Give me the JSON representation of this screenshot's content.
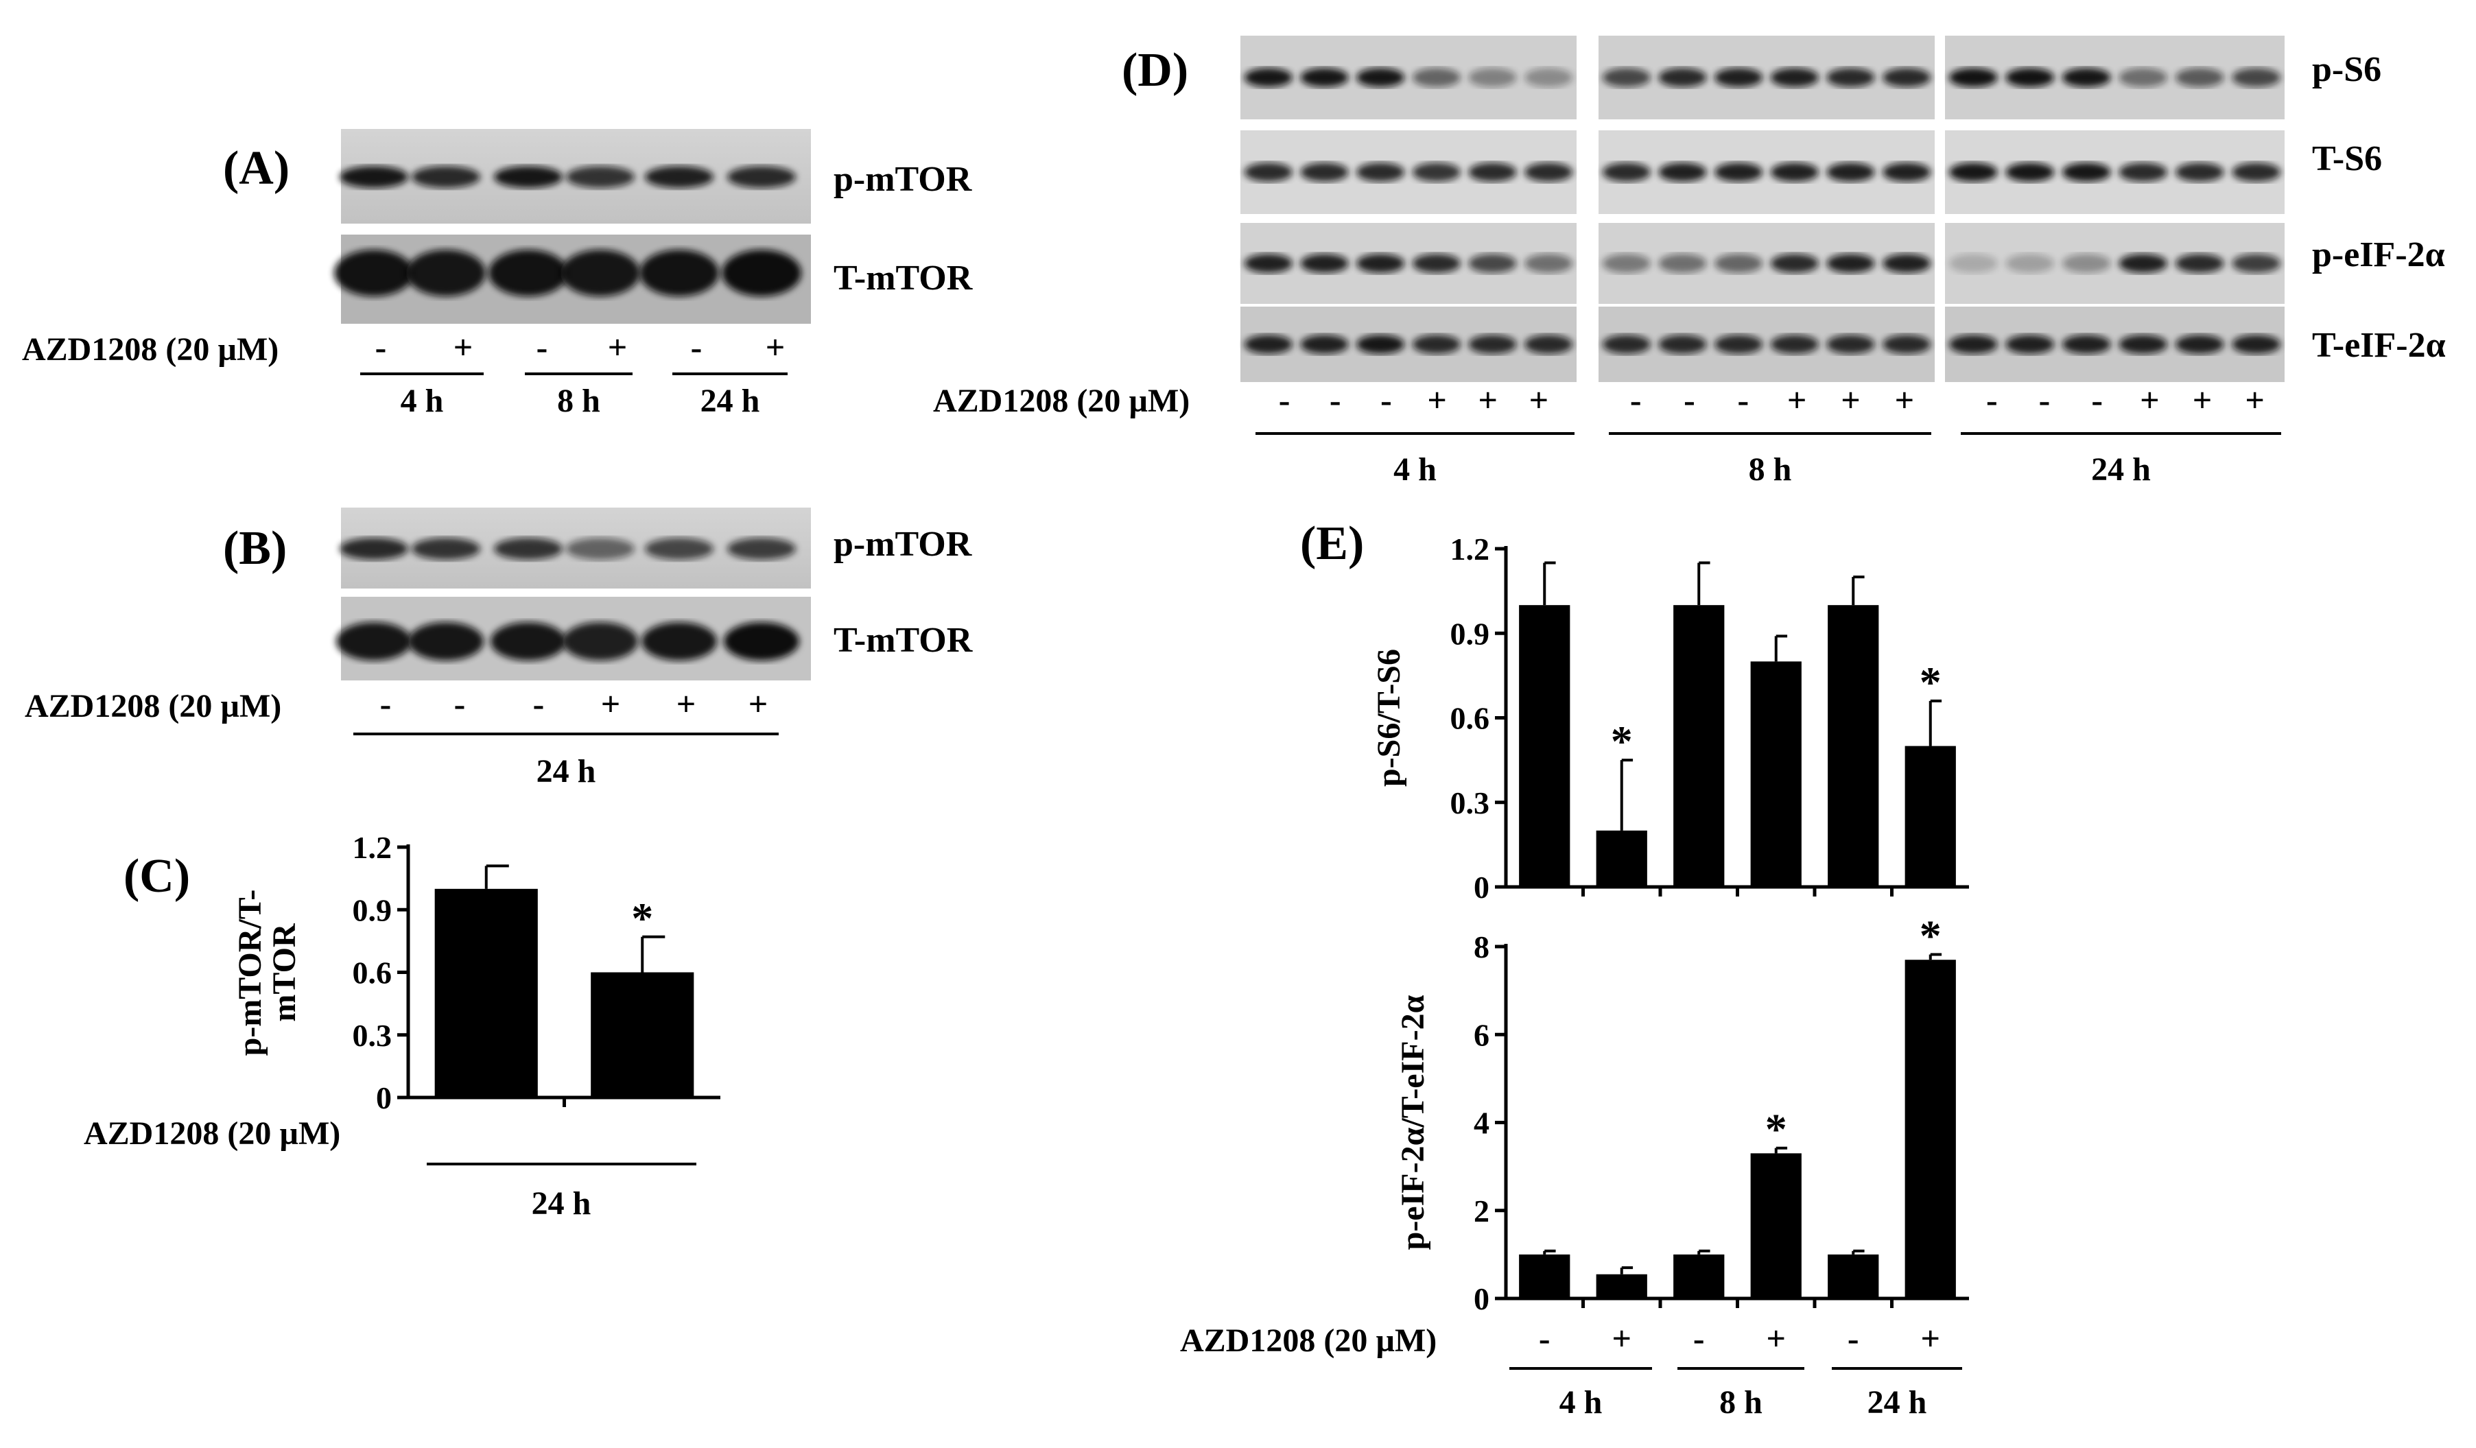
{
  "panels": {
    "A": {
      "label": "(A)",
      "rows": [
        "p-mTOR",
        "T-mTOR"
      ],
      "treatment_label": "AZD1208 (20 µM)",
      "signs": [
        "-",
        "+",
        "-",
        "+",
        "-",
        "+"
      ],
      "times": [
        "4 h",
        "8 h",
        "24 h"
      ]
    },
    "B": {
      "label": "(B)",
      "rows": [
        "p-mTOR",
        "T-mTOR"
      ],
      "treatment_label": "AZD1208 (20 µM)",
      "signs": [
        "-",
        "-",
        "-",
        "+",
        "+",
        "+"
      ],
      "time": "24 h"
    },
    "C": {
      "label": "(C)",
      "treatment_label": "AZD1208 (20 µM)",
      "signs": [
        "-",
        "+"
      ],
      "time": "24 h",
      "star": "*"
    },
    "D": {
      "label": "(D)",
      "rows": [
        "p-S6",
        "T-S6",
        "p-eIF-2α",
        "T-eIF-2α"
      ],
      "treatment_label": "AZD1208 (20 µM)",
      "signs": [
        "-",
        "-",
        "-",
        "+",
        "+",
        "+"
      ],
      "times": [
        "4 h",
        "8 h",
        "24 h"
      ]
    },
    "E": {
      "label": "(E)",
      "treatment_label": "AZD1208 (20 µM)",
      "signs": [
        "-",
        "+",
        "-",
        "+",
        "-",
        "+"
      ],
      "times": [
        "4 h",
        "8 h",
        "24 h"
      ],
      "star": "*"
    }
  },
  "chart_data": [
    {
      "id": "C",
      "type": "bar",
      "title": "",
      "ylabel": "p-mTOR/T-mTOR",
      "ylim": [
        0,
        1.2
      ],
      "yticks": [
        "0",
        "0.3",
        "0.6",
        "0.9",
        "1.2"
      ],
      "categories": [
        "-",
        "+"
      ],
      "values": [
        1.0,
        0.6
      ],
      "errors": [
        0.11,
        0.17
      ],
      "significant": [
        false,
        true
      ]
    },
    {
      "id": "E-top",
      "type": "bar",
      "title": "",
      "ylabel": "p-S6/T-S6",
      "ylim": [
        0,
        1.2
      ],
      "yticks": [
        "0",
        "0.3",
        "0.6",
        "0.9",
        "1.2"
      ],
      "categories": [
        "-",
        "+",
        "-",
        "+",
        "-",
        "+"
      ],
      "values": [
        1.0,
        0.2,
        1.0,
        0.8,
        1.0,
        0.5
      ],
      "errors": [
        0.15,
        0.25,
        0.15,
        0.09,
        0.1,
        0.16
      ],
      "significant": [
        false,
        true,
        false,
        false,
        false,
        true
      ]
    },
    {
      "id": "E-bottom",
      "type": "bar",
      "title": "",
      "ylabel": "p-eIF-2α/T-eIF-2α",
      "ylim": [
        0,
        8
      ],
      "yticks": [
        "0",
        "2",
        "4",
        "6",
        "8"
      ],
      "categories": [
        "-",
        "+",
        "-",
        "+",
        "-",
        "+"
      ],
      "values": [
        1.0,
        0.55,
        1.0,
        3.3,
        1.0,
        7.7
      ],
      "errors": [
        0.08,
        0.15,
        0.08,
        0.12,
        0.08,
        0.12
      ],
      "significant": [
        false,
        false,
        false,
        true,
        false,
        true
      ]
    }
  ]
}
